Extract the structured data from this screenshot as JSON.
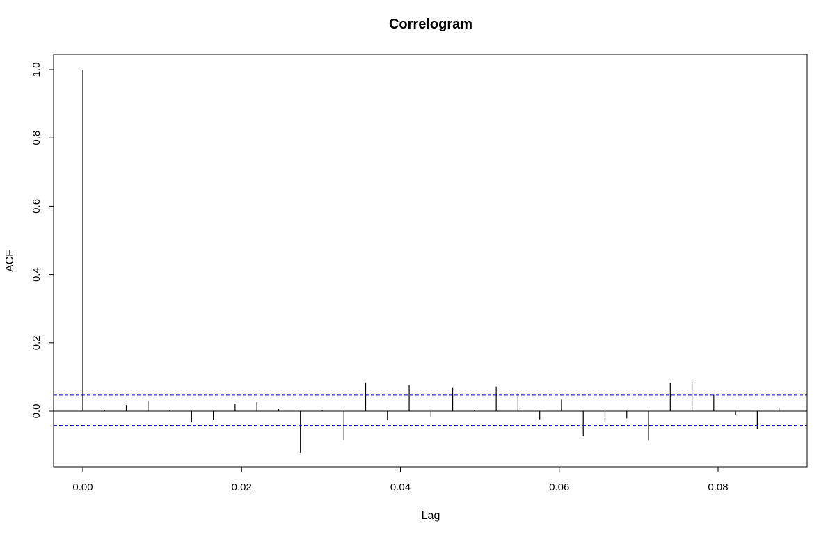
{
  "chart_data": {
    "type": "bar",
    "title": "Correlogram",
    "xlabel": "Lag",
    "ylabel": "ACF",
    "xlim": [
      0.0,
      0.088
    ],
    "ylim": [
      -0.12,
      1.0
    ],
    "x_ticks": [
      "0.00",
      "0.02",
      "0.04",
      "0.06",
      "0.08"
    ],
    "y_ticks": [
      "0.0",
      "0.2",
      "0.4",
      "0.6",
      "0.8",
      "1.0"
    ],
    "confidence_band": [
      0.047,
      -0.042
    ],
    "x": [
      0.0,
      0.00274,
      0.00548,
      0.00822,
      0.01096,
      0.0137,
      0.01644,
      0.01918,
      0.02192,
      0.02466,
      0.0274,
      0.03014,
      0.03288,
      0.03562,
      0.03836,
      0.0411,
      0.04384,
      0.04658,
      0.04932,
      0.05206,
      0.0548,
      0.05754,
      0.06028,
      0.06302,
      0.06576,
      0.0685,
      0.07124,
      0.07398,
      0.07672,
      0.07946,
      0.0822,
      0.08494,
      0.08768
    ],
    "values": [
      1.0,
      0.003,
      0.018,
      0.03,
      0.002,
      -0.033,
      -0.025,
      0.022,
      0.026,
      0.006,
      -0.122,
      0.002,
      -0.084,
      0.084,
      -0.026,
      0.076,
      -0.018,
      0.07,
      0.003,
      0.072,
      0.053,
      -0.024,
      0.034,
      -0.073,
      -0.029,
      -0.021,
      -0.086,
      0.083,
      0.081,
      0.048,
      -0.01,
      -0.051,
      0.01
    ]
  }
}
